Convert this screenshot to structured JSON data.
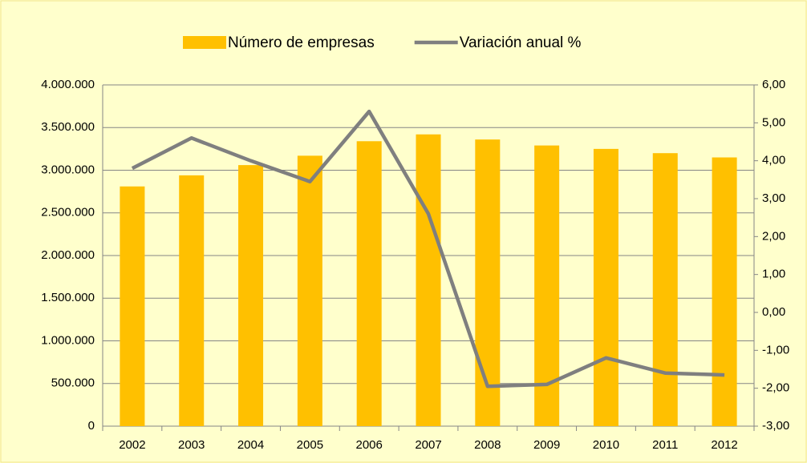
{
  "chart_data": {
    "type": "bar-line",
    "categories": [
      "2002",
      "2003",
      "2004",
      "2005",
      "2006",
      "2007",
      "2008",
      "2009",
      "2010",
      "2011",
      "2012"
    ],
    "series": [
      {
        "name": "Número de empresas",
        "color": "#ffc000",
        "type": "bar",
        "values": [
          2810000,
          2940000,
          3060000,
          3170000,
          3340000,
          3420000,
          3360000,
          3290000,
          3250000,
          3200000,
          3150000
        ]
      },
      {
        "name": "Variación anual %",
        "color": "#7f7f7f",
        "type": "line",
        "axis": "y2",
        "values": [
          3.8,
          4.6,
          4.0,
          3.45,
          5.3,
          2.6,
          -1.95,
          -1.9,
          -1.2,
          -1.6,
          -1.65
        ]
      }
    ],
    "ylim": [
      0,
      4000000
    ],
    "yticks": [
      0,
      {
        "value": 500000,
        "label": "500.000"
      },
      {
        "value": 1000000,
        "label": "1.000.000"
      },
      {
        "value": 1500000,
        "label": "1.500.000"
      },
      {
        "value": 2000000,
        "label": "2.000.000"
      },
      {
        "value": 2500000,
        "label": "2.500.000"
      },
      {
        "value": 3000000,
        "label": "3.000.000"
      },
      {
        "value": 3500000,
        "label": "3.500.000"
      },
      {
        "value": 4000000,
        "label": "4.000.000"
      }
    ],
    "y2lim": [
      -3,
      6
    ],
    "y2ticks": [
      {
        "value": -3,
        "label": "-3,00"
      },
      {
        "value": -2,
        "label": "-2,00"
      },
      {
        "value": -1,
        "label": "-1,00"
      },
      {
        "value": 0,
        "label": "0,00"
      },
      {
        "value": 1,
        "label": "1,00"
      },
      {
        "value": 2,
        "label": "2,00"
      },
      {
        "value": 3,
        "label": "3,00"
      },
      {
        "value": 4,
        "label": "4,00"
      },
      {
        "value": 5,
        "label": "5,00"
      },
      {
        "value": 6,
        "label": "6,00"
      }
    ],
    "grid": true,
    "legend": "top"
  }
}
